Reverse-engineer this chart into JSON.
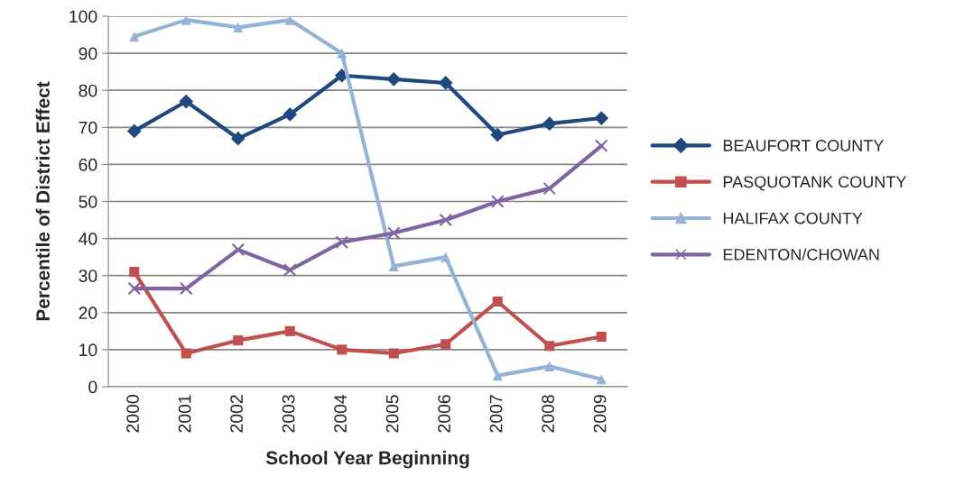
{
  "chart_data": {
    "type": "line",
    "xlabel": "School Year Beginning",
    "ylabel": "Percentile of District Effect",
    "categories": [
      "2000",
      "2001",
      "2002",
      "2003",
      "2004",
      "2005",
      "2006",
      "2007",
      "2008",
      "2009"
    ],
    "series": [
      {
        "name": "BEAUFORT COUNTY",
        "color": "#1f497d",
        "marker": "diamond",
        "values": [
          69,
          77,
          67,
          73.5,
          84,
          83,
          82,
          68,
          71,
          72.5
        ]
      },
      {
        "name": "PASQUOTANK COUNTY",
        "color": "#c0504d",
        "marker": "square",
        "values": [
          31,
          9,
          12.5,
          15,
          10,
          9,
          11.5,
          23,
          11,
          13.5
        ]
      },
      {
        "name": "HALIFAX COUNTY",
        "color": "#95b3d7",
        "marker": "triangle",
        "values": [
          94.5,
          99,
          97,
          99,
          90,
          32.5,
          35,
          3,
          5.5,
          2
        ]
      },
      {
        "name": "EDENTON/CHOWAN",
        "color": "#8064a2",
        "marker": "cross",
        "values": [
          26.5,
          26.5,
          37,
          31.5,
          39,
          41.5,
          45,
          50,
          53.5,
          65
        ]
      }
    ],
    "ylim": [
      0,
      100
    ],
    "yticks": [
      0,
      10,
      20,
      30,
      40,
      50,
      60,
      70,
      80,
      90,
      100
    ],
    "grid": "y",
    "legend": "right"
  }
}
